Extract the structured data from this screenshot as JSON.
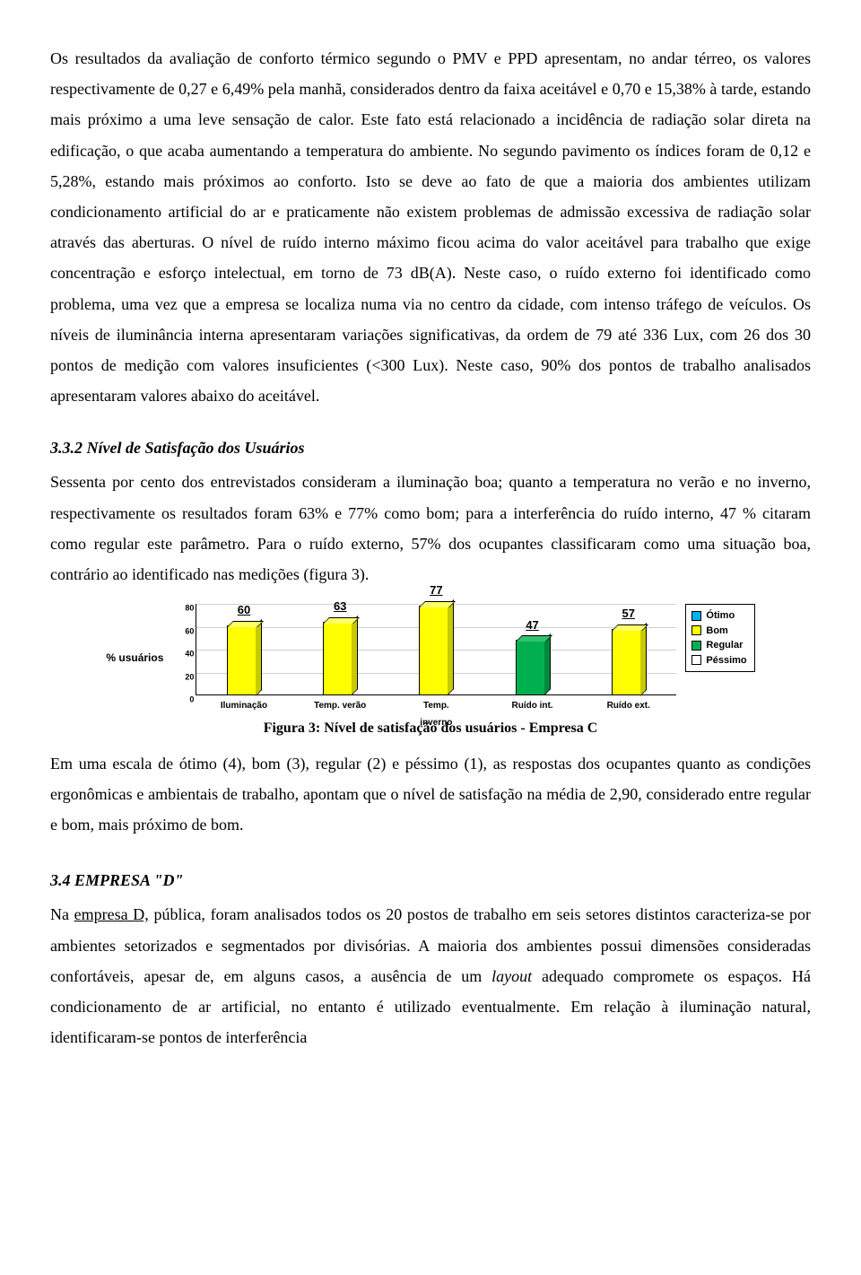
{
  "para1": "Os resultados da avaliação de conforto térmico segundo o PMV e PPD apresentam, no andar térreo, os valores respectivamente de 0,27 e 6,49% pela manhã, considerados dentro da faixa aceitável e 0,70 e 15,38% à tarde, estando mais próximo a uma leve sensação de calor. Este fato está relacionado a incidência de radiação solar direta na edificação, o que acaba aumentando a temperatura do ambiente. No segundo pavimento os índices foram de 0,12 e 5,28%, estando mais próximos ao conforto. Isto se deve ao fato de que a maioria dos ambientes utilizam condicionamento artificial do ar e praticamente não existem problemas de admissão excessiva de radiação solar através das aberturas. O nível de ruído interno máximo ficou acima do valor aceitável para trabalho que exige concentração e esforço intelectual, em torno de 73 dB(A). Neste caso, o ruído externo foi identificado como problema, uma vez que a empresa se localiza numa via no centro da cidade, com intenso tráfego de veículos. Os níveis de iluminância interna apresentaram variações significativas, da ordem de 79 até 336 Lux, com 26 dos 30 pontos de medição com valores insuficientes (<300 Lux). Neste caso, 90% dos pontos de trabalho analisados apresentaram valores abaixo do aceitável.",
  "heading332": "3.3.2  Nível de Satisfação dos Usuários",
  "para2": "Sessenta por cento dos entrevistados consideram a iluminação boa; quanto a temperatura no verão e no inverno, respectivamente os resultados foram 63% e 77% como bom; para a interferência do ruído interno, 47 % citaram como regular este parâmetro. Para o ruído externo, 57% dos ocupantes classificaram como uma situação boa, contrário ao identificado nas medições (figura 3).",
  "chart": {
    "type": "bar",
    "ylabel": "% usuários",
    "ylim": [
      0,
      80
    ],
    "ytick_step": 20,
    "categories": [
      "Iluminação",
      "Temp. verão",
      "Temp. inverno",
      "Ruído int.",
      "Ruído ext."
    ],
    "values": [
      60,
      63,
      77,
      47,
      57
    ],
    "bar_colors_front": [
      "#ffff00",
      "#ffff00",
      "#ffff00",
      "#00b050",
      "#ffff00"
    ],
    "bar_colors_side": [
      "#c9c900",
      "#c9c900",
      "#c9c900",
      "#008a3e",
      "#c9c900"
    ],
    "bar_colors_top": [
      "#ffff66",
      "#ffff66",
      "#ffff66",
      "#33c06f",
      "#ffff66"
    ],
    "grid_color": "#d0d0d0",
    "legend": {
      "items": [
        {
          "label": "Ótimo",
          "color": "#00b0f0"
        },
        {
          "label": "Bom",
          "color": "#ffff00"
        },
        {
          "label": "Regular",
          "color": "#00b050"
        },
        {
          "label": "Péssimo",
          "color": "#ffffff"
        }
      ]
    }
  },
  "caption": "Figura 3: Nível de satisfação dos usuários - Empresa C",
  "para3_a": "Em uma escala de ótimo (4), bom (3), regular (2) e péssimo (1), as respostas dos ocupantes quanto as condições ergonômicas e ambientais de trabalho, apontam que o nível de satisfação na média de 2,90, considerado entre regular e bom, mais próximo de bom.",
  "heading34": "3.4  EMPRESA \"D\"",
  "para4_prefix": "Na ",
  "para4_underline": "empresa D,",
  "para4_rest": " pública, foram analisados todos os 20 postos de trabalho em seis setores distintos caracteriza-se por ambientes setorizados e segmentados por divisórias. A maioria dos ambientes possui dimensões consideradas confortáveis, apesar de, em alguns casos, a ausência de um ",
  "para4_italic": "layout",
  "para4_tail": " adequado compromete os espaços. Há condicionamento de ar artificial, no entanto é utilizado eventualmente. Em relação à iluminação natural, identificaram-se pontos de interferência"
}
